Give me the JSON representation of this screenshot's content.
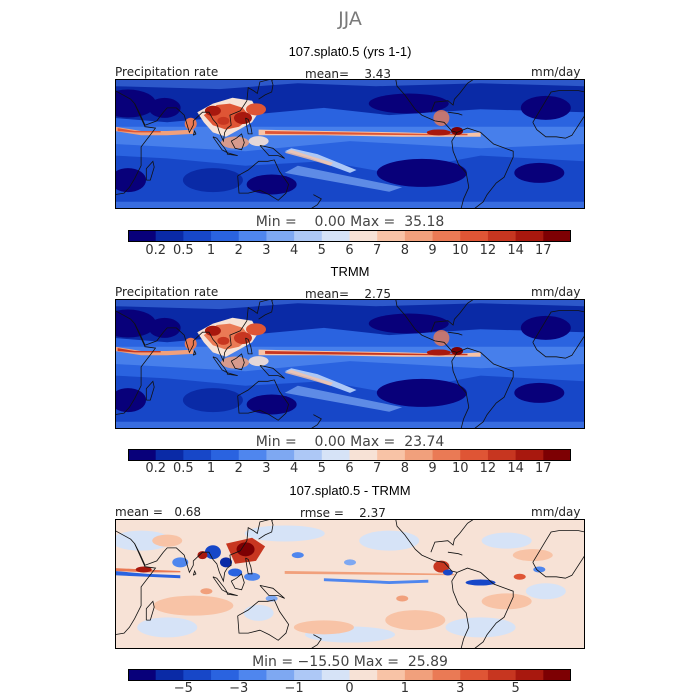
{
  "title": "JJA",
  "panels": [
    {
      "subtitle": "107.splat0.5 (yrs 1-1)",
      "left_label": "Precipitation rate",
      "center_label": "mean=    3.43",
      "units": "mm/day",
      "minmax": "Min =    0.00 Max =  35.18",
      "colorbar": "precip"
    },
    {
      "subtitle": "TRMM",
      "left_label": "Precipitation rate",
      "center_label": "mean=    2.75",
      "units": "mm/day",
      "minmax": "Min =    0.00 Max =  23.74",
      "colorbar": "precip"
    },
    {
      "subtitle": "107.splat0.5 - TRMM",
      "left_label": "mean =   0.68",
      "center_label": "rmse =    2.37",
      "units": "mm/day",
      "minmax": "Min = −15.50 Max =  25.89",
      "colorbar": "diff"
    }
  ],
  "colorbars": {
    "precip": {
      "colors": [
        "#08007a",
        "#0a2aa6",
        "#1747c8",
        "#2a63e0",
        "#4f86ee",
        "#7ea8f2",
        "#adc8f6",
        "#d6e3f7",
        "#f7e2d6",
        "#f8c3a6",
        "#f1a07c",
        "#ea7a55",
        "#df5535",
        "#c73620",
        "#a8180e",
        "#7d0003"
      ],
      "tick_labels": [
        "0.2",
        "0.5",
        "1",
        "2",
        "3",
        "4",
        "5",
        "6",
        "7",
        "8",
        "9",
        "10",
        "12",
        "14",
        "17"
      ]
    },
    "diff": {
      "colors": [
        "#08007a",
        "#0a2aa6",
        "#1747c8",
        "#2a63e0",
        "#4f86ee",
        "#7ea8f2",
        "#adc8f6",
        "#d6e3f7",
        "#f7e2d6",
        "#f8c3a6",
        "#f1a07c",
        "#ea7a55",
        "#df5535",
        "#c73620",
        "#a8180e",
        "#7d0003"
      ],
      "tick_labels": [
        "−5",
        "−3",
        "−1",
        "0",
        "1",
        "3",
        "5"
      ]
    }
  }
}
